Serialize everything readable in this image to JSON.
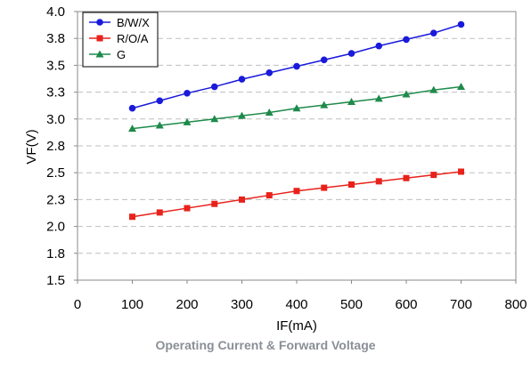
{
  "caption": "Operating Current & Forward Voltage",
  "chart_data": {
    "type": "line",
    "title": "",
    "xlabel": "IF(mA)",
    "ylabel": "VF(V)",
    "xlim": [
      0,
      800
    ],
    "ylim": [
      1.5,
      4.0
    ],
    "x_ticks": [
      "0",
      "100",
      "200",
      "300",
      "400",
      "500",
      "600",
      "700",
      "800"
    ],
    "y_ticks": [
      "4.0",
      "3.8",
      "3.5",
      "3.3",
      "3.0",
      "2.8",
      "2.5",
      "2.3",
      "2.0",
      "1.8",
      "1.5"
    ],
    "grid": "horizontal dashed",
    "legend_position": "top-left",
    "x": [
      100,
      150,
      200,
      250,
      300,
      350,
      400,
      450,
      500,
      550,
      600,
      650,
      700
    ],
    "series": [
      {
        "name": "B/W/X",
        "color": "#1a1adb",
        "marker": "circle",
        "values": [
          3.1,
          3.17,
          3.24,
          3.3,
          3.37,
          3.43,
          3.49,
          3.55,
          3.61,
          3.68,
          3.74,
          3.8,
          3.88
        ]
      },
      {
        "name": "R/O/A",
        "color": "#e8221b",
        "marker": "square",
        "values": [
          2.09,
          2.13,
          2.17,
          2.21,
          2.25,
          2.29,
          2.33,
          2.36,
          2.39,
          2.42,
          2.45,
          2.48,
          2.51
        ]
      },
      {
        "name": "G",
        "color": "#1e8a4a",
        "marker": "triangle",
        "values": [
          2.91,
          2.94,
          2.97,
          3.0,
          3.03,
          3.06,
          3.1,
          3.13,
          3.16,
          3.19,
          3.23,
          3.27,
          3.3
        ]
      }
    ]
  }
}
